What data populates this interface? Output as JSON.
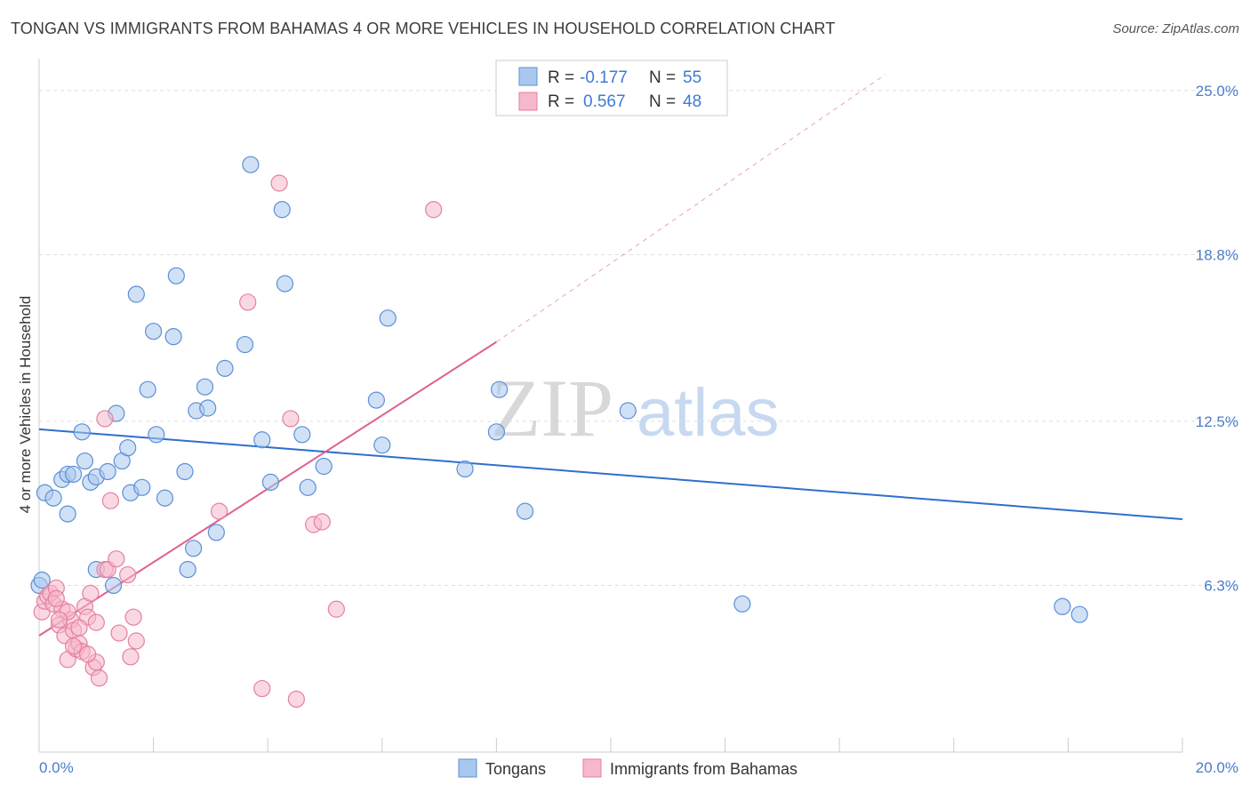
{
  "title": "TONGAN VS IMMIGRANTS FROM BAHAMAS 4 OR MORE VEHICLES IN HOUSEHOLD CORRELATION CHART",
  "source": "Source: ZipAtlas.com",
  "watermark": {
    "zip": "ZIP",
    "atlas": "atlas"
  },
  "colors": {
    "blue_fill": "#a9c8ee",
    "blue_stroke": "#5b8fd6",
    "blue_line": "#2f6fcc",
    "pink_fill": "#f6b8cb",
    "pink_stroke": "#e57fa0",
    "pink_line": "#e0608e",
    "tick_text": "#4a7cc9",
    "grid": "#dddddd"
  },
  "legend": {
    "rows": [
      {
        "r_label": "R =",
        "r_value": "-0.177",
        "n_label": "N =",
        "n_value": "55"
      },
      {
        "r_label": "R =",
        "r_value": "0.567",
        "n_label": "N =",
        "n_value": "48"
      }
    ]
  },
  "chart_data": {
    "type": "scatter",
    "title": "TONGAN VS IMMIGRANTS FROM BAHAMAS 4 OR MORE VEHICLES IN HOUSEHOLD CORRELATION CHART",
    "xlabel": "",
    "ylabel": "4 or more Vehicles in Household",
    "xlim": [
      0,
      20
    ],
    "ylim": [
      0,
      25.8
    ],
    "x_tick_labels": [
      "0.0%",
      "20.0%"
    ],
    "y_ticks": [
      6.3,
      12.5,
      18.8,
      25.0
    ],
    "y_tick_labels": [
      "6.3%",
      "12.5%",
      "18.8%",
      "25.0%"
    ],
    "series": [
      {
        "name": "Tongans",
        "color": "blue",
        "trend": {
          "x0": 0.0,
          "y0": 12.2,
          "x1": 20.0,
          "y1": 8.8
        },
        "points": [
          [
            0.1,
            9.8
          ],
          [
            0.25,
            9.6
          ],
          [
            0.4,
            10.3
          ],
          [
            0.5,
            9.0
          ],
          [
            0.5,
            10.5
          ],
          [
            0.6,
            10.5
          ],
          [
            0.75,
            12.1
          ],
          [
            0.8,
            11.0
          ],
          [
            0.9,
            10.2
          ],
          [
            1.0,
            10.4
          ],
          [
            1.0,
            6.9
          ],
          [
            1.2,
            10.6
          ],
          [
            1.3,
            6.3
          ],
          [
            1.35,
            12.8
          ],
          [
            1.45,
            11.0
          ],
          [
            1.55,
            11.5
          ],
          [
            1.6,
            9.8
          ],
          [
            1.7,
            17.3
          ],
          [
            1.8,
            10.0
          ],
          [
            1.9,
            13.7
          ],
          [
            2.0,
            15.9
          ],
          [
            2.05,
            12.0
          ],
          [
            2.2,
            9.6
          ],
          [
            2.35,
            15.7
          ],
          [
            2.4,
            18.0
          ],
          [
            2.55,
            10.6
          ],
          [
            2.6,
            6.9
          ],
          [
            2.7,
            7.7
          ],
          [
            2.75,
            12.9
          ],
          [
            2.9,
            13.8
          ],
          [
            2.95,
            13.0
          ],
          [
            3.1,
            8.3
          ],
          [
            3.25,
            14.5
          ],
          [
            3.6,
            15.4
          ],
          [
            3.7,
            22.2
          ],
          [
            3.9,
            11.8
          ],
          [
            4.05,
            10.2
          ],
          [
            4.25,
            20.5
          ],
          [
            4.3,
            17.7
          ],
          [
            4.6,
            12.0
          ],
          [
            4.7,
            10.0
          ],
          [
            4.98,
            10.8
          ],
          [
            5.9,
            13.3
          ],
          [
            6.0,
            11.6
          ],
          [
            6.1,
            16.4
          ],
          [
            7.45,
            10.7
          ],
          [
            8.0,
            12.1
          ],
          [
            8.05,
            13.7
          ],
          [
            8.5,
            9.1
          ],
          [
            10.3,
            12.9
          ],
          [
            12.3,
            5.6
          ],
          [
            17.9,
            5.5
          ],
          [
            18.2,
            5.2
          ],
          [
            0.0,
            6.3
          ],
          [
            0.05,
            6.5
          ]
        ]
      },
      {
        "name": "Immigrants from Bahamas",
        "color": "pink",
        "trend": {
          "x0": 0.0,
          "y0": 4.4,
          "x1": 8.0,
          "y1": 15.5,
          "dash_x1": 14.8,
          "dash_y1": 25.6
        },
        "points": [
          [
            0.05,
            5.3
          ],
          [
            0.1,
            5.7
          ],
          [
            0.15,
            5.9
          ],
          [
            0.2,
            6.0
          ],
          [
            0.25,
            5.6
          ],
          [
            0.3,
            6.2
          ],
          [
            0.35,
            4.8
          ],
          [
            0.4,
            5.4
          ],
          [
            0.45,
            4.4
          ],
          [
            0.5,
            3.5
          ],
          [
            0.55,
            5.0
          ],
          [
            0.6,
            4.6
          ],
          [
            0.65,
            3.9
          ],
          [
            0.7,
            4.1
          ],
          [
            0.75,
            3.8
          ],
          [
            0.8,
            5.5
          ],
          [
            0.85,
            5.1
          ],
          [
            0.9,
            6.0
          ],
          [
            0.95,
            3.2
          ],
          [
            1.0,
            3.4
          ],
          [
            1.05,
            2.8
          ],
          [
            1.15,
            6.9
          ],
          [
            1.2,
            6.9
          ],
          [
            1.25,
            9.5
          ],
          [
            1.35,
            7.3
          ],
          [
            1.4,
            4.5
          ],
          [
            1.55,
            6.7
          ],
          [
            1.6,
            3.6
          ],
          [
            1.65,
            5.1
          ],
          [
            1.7,
            4.2
          ],
          [
            1.15,
            12.6
          ],
          [
            3.15,
            9.1
          ],
          [
            3.65,
            17.0
          ],
          [
            3.9,
            2.4
          ],
          [
            4.2,
            21.5
          ],
          [
            4.4,
            12.6
          ],
          [
            4.5,
            2.0
          ],
          [
            4.8,
            8.6
          ],
          [
            4.95,
            8.7
          ],
          [
            5.2,
            5.4
          ],
          [
            6.9,
            20.5
          ],
          [
            0.3,
            5.8
          ],
          [
            0.6,
            4.0
          ],
          [
            0.7,
            4.7
          ],
          [
            0.5,
            5.3
          ],
          [
            0.85,
            3.7
          ],
          [
            0.35,
            5.0
          ],
          [
            1.0,
            4.9
          ]
        ]
      }
    ],
    "bottom_legend": [
      "Tongans",
      "Immigrants from Bahamas"
    ]
  }
}
